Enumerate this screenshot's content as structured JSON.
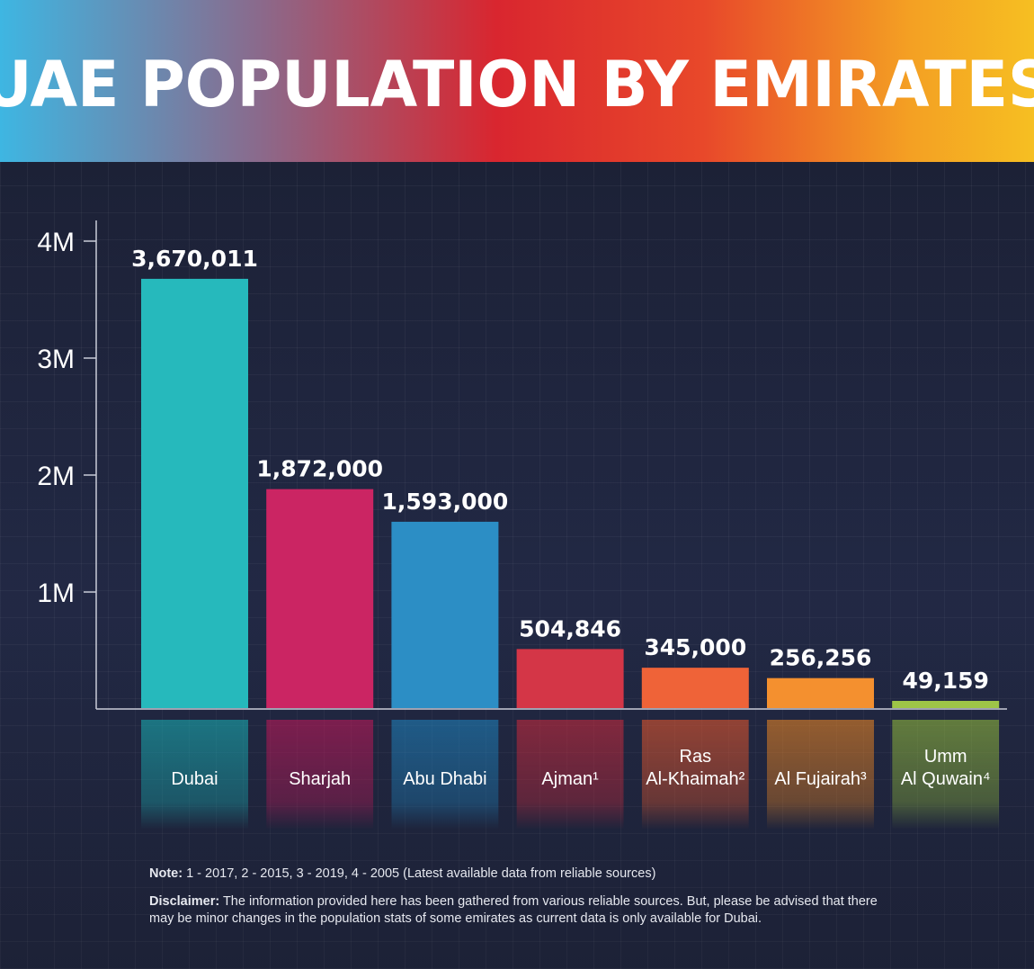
{
  "header": {
    "title": "UAE POPULATION BY EMIRATES"
  },
  "colors": {
    "dubai": "#19b5b8",
    "sharjah": "#c8185a",
    "abu_dhabi": "#1f87c2",
    "ajman": "#d22a3c",
    "ras_al_khaimah": "#ef5a2c",
    "al_fujairah": "#f48a22",
    "umm_al_quwain": "#98c23c"
  },
  "chart_data": {
    "type": "bar",
    "title": "UAE POPULATION BY EMIRATES",
    "categories": [
      [
        "Dubai"
      ],
      [
        "Sharjah"
      ],
      [
        "Abu Dhabi"
      ],
      [
        "Ajman¹"
      ],
      [
        "Ras",
        "Al-Khaimah²"
      ],
      [
        "Al Fujairah³"
      ],
      [
        "Umm",
        "Al Quwain⁴"
      ]
    ],
    "values": [
      3670011,
      1872000,
      1593000,
      504846,
      345000,
      256256,
      49159
    ],
    "value_labels": [
      "3,670,011",
      "1,872,000",
      "1,593,000",
      "504,846",
      "345,000",
      "256,256",
      "49,159"
    ],
    "colors": [
      "#19b5b8",
      "#c8185a",
      "#1f87c2",
      "#d22a3c",
      "#ef5a2c",
      "#f48a22",
      "#98c23c"
    ],
    "y_ticks": [
      1000000,
      2000000,
      3000000,
      4000000
    ],
    "y_tick_labels": [
      "1M",
      "2M",
      "3M",
      "4M"
    ],
    "ylim": [
      0,
      4000000
    ],
    "grid": true,
    "legend": "none"
  },
  "notes": {
    "note_label": "Note:",
    "note_text": " 1 - 2017, 2 - 2015, 3 - 2019, 4 - 2005 (Latest available data from reliable sources)",
    "disclaimer_label": "Disclaimer:",
    "disclaimer_text": " The information provided here has been gathered from various reliable sources. But, please be advised that there may be minor changes in the population stats of some emirates as current data is only available for Dubai."
  }
}
